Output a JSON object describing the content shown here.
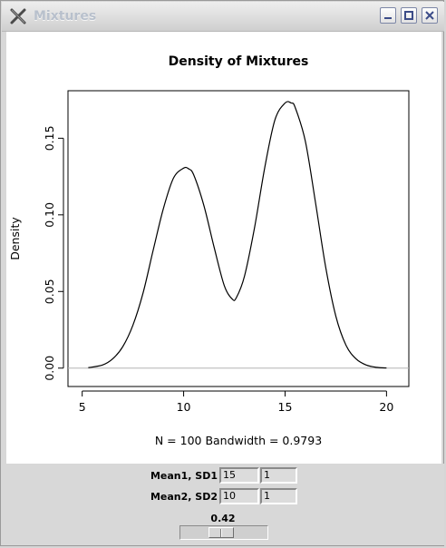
{
  "window": {
    "title": "Mixtures",
    "app_icon": "x-icon",
    "buttons": [
      "minimize-icon",
      "maximize-icon",
      "close-icon"
    ]
  },
  "chart_data": {
    "type": "line",
    "title": "Density of Mixtures",
    "xlabel": "N = 100   Bandwidth = 0.9793",
    "ylabel": "Density",
    "xlim": [
      4.3,
      21.1
    ],
    "ylim": [
      -0.012,
      0.181
    ],
    "x_ticks": [
      "5",
      "10",
      "15",
      "20"
    ],
    "y_ticks": [
      "0.00",
      "0.05",
      "0.10",
      "0.15"
    ],
    "grid": false,
    "series": [
      {
        "x": [
          5.3,
          6.0,
          6.5,
          7.0,
          7.5,
          8.0,
          8.5,
          9.0,
          9.5,
          10.0,
          10.25,
          10.5,
          11.0,
          11.5,
          12.0,
          12.4,
          12.6,
          13.0,
          13.5,
          14.0,
          14.5,
          15.0,
          15.3,
          15.5,
          16.0,
          16.5,
          17.0,
          17.5,
          18.0,
          18.5,
          19.0,
          19.5,
          20.0
        ],
        "y": [
          0.0003,
          0.002,
          0.006,
          0.014,
          0.028,
          0.049,
          0.077,
          0.104,
          0.124,
          0.1305,
          0.13,
          0.126,
          0.106,
          0.079,
          0.054,
          0.045,
          0.046,
          0.06,
          0.092,
          0.131,
          0.162,
          0.173,
          0.173,
          0.17,
          0.148,
          0.108,
          0.066,
          0.034,
          0.015,
          0.006,
          0.002,
          0.0005,
          0.0001
        ]
      }
    ],
    "zero_line": true
  },
  "controls": {
    "mean1_label": "Mean1, SD1",
    "mean1_value": "15",
    "sd1_value": "1",
    "mean2_label": "Mean2, SD2",
    "mean2_value": "10",
    "sd2_value": "1",
    "slider_value_text": "0.42",
    "slider_value": 0.42
  }
}
